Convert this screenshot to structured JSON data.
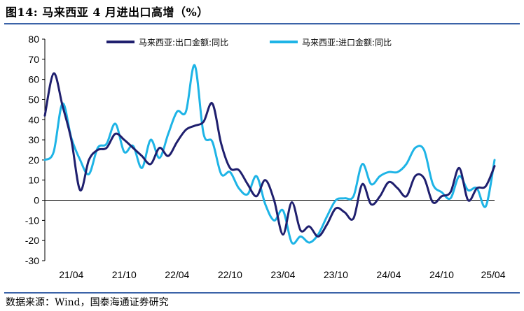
{
  "header": {
    "title": "图14:  马来西亚 4 月进出口高增（%）"
  },
  "footer": {
    "source": "数据来源：Wind，国泰海通证券研究"
  },
  "chart_data": {
    "type": "line",
    "title": "图14:  马来西亚 4 月进出口高增（%）",
    "xlabel": "",
    "ylabel": "",
    "ylim": [
      -30,
      80
    ],
    "yticks": [
      80,
      70,
      60,
      50,
      40,
      30,
      20,
      10,
      0,
      -10,
      -20,
      -30
    ],
    "xtick_labels": [
      "21/04",
      "21/10",
      "22/04",
      "22/10",
      "23/04",
      "23/10",
      "24/04",
      "24/10",
      "25/04"
    ],
    "x": [
      "21/01",
      "21/02",
      "21/03",
      "21/04",
      "21/05",
      "21/06",
      "21/07",
      "21/08",
      "21/09",
      "21/10",
      "21/11",
      "21/12",
      "22/01",
      "22/02",
      "22/03",
      "22/04",
      "22/05",
      "22/06",
      "22/07",
      "22/08",
      "22/09",
      "22/10",
      "22/11",
      "22/12",
      "23/01",
      "23/02",
      "23/03",
      "23/04",
      "23/05",
      "23/06",
      "23/07",
      "23/08",
      "23/09",
      "23/10",
      "23/11",
      "23/12",
      "24/01",
      "24/02",
      "24/03",
      "24/04",
      "24/05",
      "24/06",
      "24/07",
      "24/08",
      "24/09",
      "24/10",
      "24/11",
      "24/12",
      "25/01",
      "25/02",
      "25/03",
      "25/04"
    ],
    "grid": false,
    "legend": "top-center",
    "series": [
      {
        "name": "马来西亚:出口金额:同比",
        "color": "#1f1f6e",
        "values": [
          42,
          63,
          47,
          30,
          5,
          20,
          25,
          26,
          33,
          30,
          26,
          22,
          18,
          26,
          22,
          29,
          35,
          37,
          39,
          48,
          28,
          16,
          15,
          8,
          2,
          10,
          0,
          -17,
          -1,
          -15,
          -13,
          -18,
          -12,
          -4,
          -6,
          -9,
          8,
          -2,
          2,
          9,
          6,
          2,
          12,
          11,
          -1,
          2,
          4,
          16,
          0,
          6,
          7,
          17
        ]
      },
      {
        "name": "马来西亚:进口金额:同比",
        "color": "#1eb4e6",
        "values": [
          20,
          24,
          48,
          31,
          20,
          13,
          26,
          28,
          38,
          24,
          27,
          16,
          30,
          21,
          33,
          44,
          44,
          67,
          33,
          29,
          13,
          14,
          6,
          3,
          12,
          -2,
          -10,
          -5,
          -21,
          -18,
          -21,
          -17,
          -8,
          0,
          1,
          2,
          18,
          8,
          12,
          14,
          14,
          18,
          26,
          25,
          8,
          4,
          1,
          12,
          5,
          6,
          -3,
          20
        ]
      }
    ]
  }
}
